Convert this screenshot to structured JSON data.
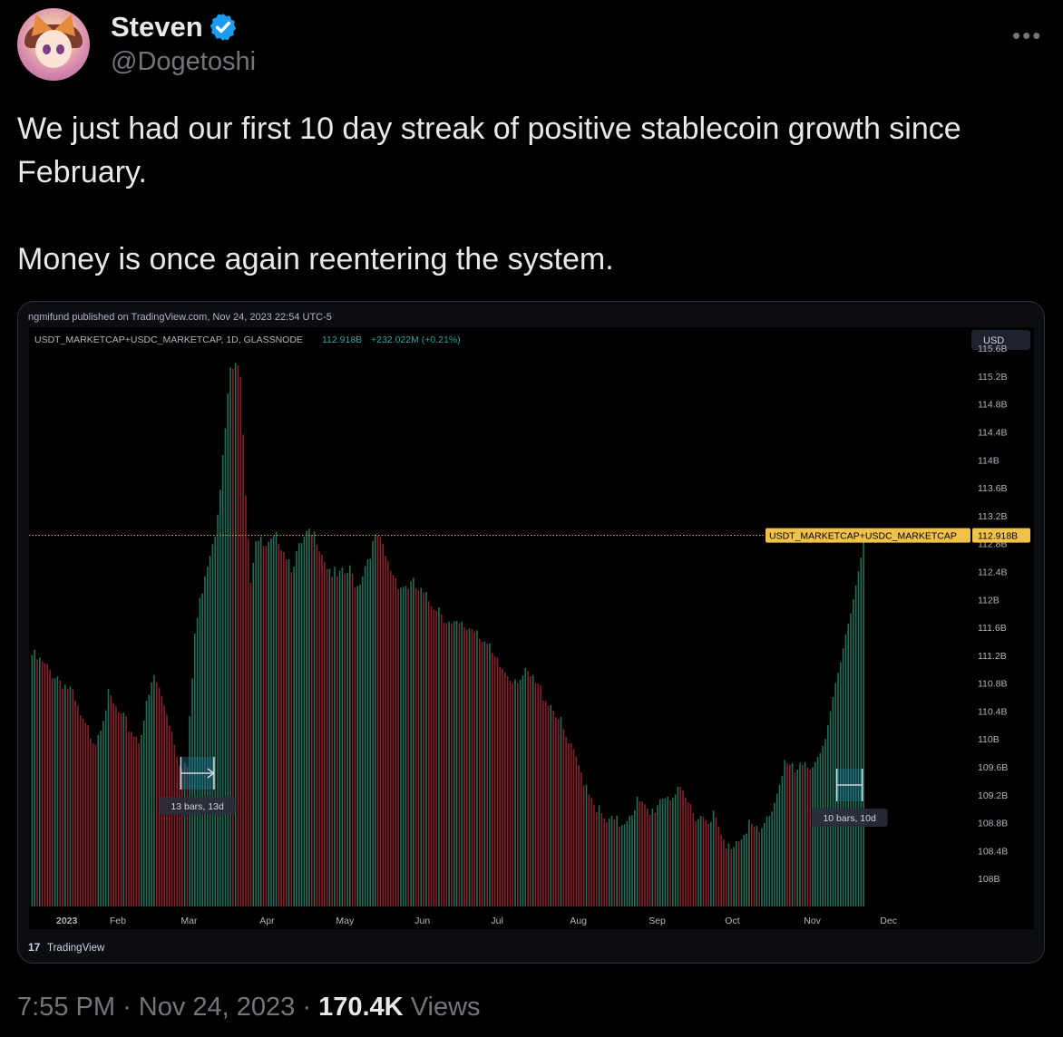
{
  "author": {
    "name": "Steven",
    "handle": "@Dogetoshi"
  },
  "tweet": {
    "line1": "We just had our first 10 day streak of positive stablecoin growth since February.",
    "line2": "Money is once again reentering the system."
  },
  "footer": {
    "time": "7:55 PM",
    "sep1": "·",
    "date": "Nov 24, 2023",
    "sep2": "·",
    "views_count": "170.4K",
    "views_label": "Views"
  },
  "more_icon": "more-horizontal-icon",
  "colors": {
    "up": "#1f6f5a",
    "down": "#8c1f2a",
    "price_label": "#f0c24a",
    "verified": "#1d9bf0"
  },
  "chart_data": {
    "type": "bar",
    "publisher": "ngmifund published on TradingView.com, Nov 24, 2023 22:54 UTC-5",
    "symbol": "USDT_MARKETCAP+USDC_MARKETCAP, 1D, GLASSNODE",
    "last_value": "112.918B",
    "change": "+232.022M (+0.21%)",
    "currency": "USD",
    "price_label_symbol": "USDT_MARKETCAP+USDC_MARKETCAP",
    "price_label_value": "112.918B",
    "last_value_num": 112.918,
    "y_ticks": [
      "115.6B",
      "115.2B",
      "114.8B",
      "114.4B",
      "114B",
      "113.6B",
      "113.2B",
      "112.8B",
      "112.4B",
      "112B",
      "111.6B",
      "111.2B",
      "110.8B",
      "110.4B",
      "110B",
      "109.6B",
      "109.2B",
      "108.8B",
      "108.4B",
      "108B"
    ],
    "y_tick_values": [
      115.6,
      115.2,
      114.8,
      114.4,
      114.0,
      113.6,
      113.2,
      112.8,
      112.4,
      112.0,
      111.6,
      111.2,
      110.8,
      110.4,
      110.0,
      109.6,
      109.2,
      108.8,
      108.4,
      108.0
    ],
    "x_ticks": [
      "2023",
      "Feb",
      "Mar",
      "Apr",
      "May",
      "Jun",
      "Jul",
      "Aug",
      "Sep",
      "Oct",
      "Nov",
      "Dec"
    ],
    "x_tick_day": [
      0,
      31,
      59,
      90,
      120,
      151,
      181,
      212,
      243,
      273,
      304,
      334
    ],
    "ylim": [
      107.6,
      115.9
    ],
    "xlim": [
      0,
      366
    ],
    "last_bar_day": 327,
    "series_anchors": [
      [
        0,
        111.2
      ],
      [
        6,
        111.0
      ],
      [
        10,
        110.9
      ],
      [
        15,
        110.7
      ],
      [
        20,
        110.2
      ],
      [
        25,
        110.0
      ],
      [
        30,
        110.6
      ],
      [
        35,
        110.3
      ],
      [
        42,
        110.0
      ],
      [
        48,
        110.9
      ],
      [
        53,
        110.4
      ],
      [
        58,
        109.7
      ],
      [
        61,
        109.6
      ],
      [
        64,
        111.5
      ],
      [
        68,
        112.4
      ],
      [
        72,
        113.0
      ],
      [
        75,
        114.0
      ],
      [
        78,
        115.3
      ],
      [
        80,
        115.3
      ],
      [
        82,
        115.3
      ],
      [
        84,
        113.6
      ],
      [
        86,
        112.3
      ],
      [
        88,
        112.9
      ],
      [
        92,
        112.7
      ],
      [
        97,
        112.9
      ],
      [
        102,
        112.5
      ],
      [
        108,
        112.9
      ],
      [
        112,
        112.9
      ],
      [
        116,
        112.5
      ],
      [
        120,
        112.3
      ],
      [
        125,
        112.4
      ],
      [
        128,
        112.2
      ],
      [
        133,
        112.7
      ],
      [
        136,
        112.9
      ],
      [
        140,
        112.5
      ],
      [
        145,
        112.2
      ],
      [
        150,
        112.2
      ],
      [
        155,
        112.0
      ],
      [
        160,
        111.9
      ],
      [
        165,
        111.6
      ],
      [
        170,
        111.6
      ],
      [
        175,
        111.6
      ],
      [
        178,
        111.4
      ],
      [
        182,
        111.1
      ],
      [
        188,
        110.9
      ],
      [
        195,
        110.9
      ],
      [
        200,
        110.7
      ],
      [
        206,
        110.4
      ],
      [
        210,
        110.0
      ],
      [
        215,
        109.6
      ],
      [
        220,
        109.2
      ],
      [
        225,
        108.8
      ],
      [
        232,
        108.8
      ],
      [
        238,
        109.1
      ],
      [
        243,
        108.9
      ],
      [
        248,
        109.2
      ],
      [
        255,
        109.2
      ],
      [
        262,
        108.9
      ],
      [
        268,
        108.9
      ],
      [
        273,
        108.4
      ],
      [
        278,
        108.6
      ],
      [
        282,
        108.8
      ],
      [
        286,
        108.6
      ],
      [
        292,
        109.1
      ],
      [
        296,
        109.7
      ],
      [
        300,
        109.5
      ],
      [
        304,
        109.6
      ],
      [
        308,
        109.7
      ],
      [
        310,
        109.8
      ],
      [
        312,
        110.0
      ],
      [
        314,
        110.4
      ],
      [
        316,
        110.8
      ],
      [
        318,
        111.1
      ],
      [
        320,
        111.5
      ],
      [
        322,
        111.8
      ],
      [
        324,
        112.2
      ],
      [
        326,
        112.6
      ],
      [
        327,
        112.918
      ]
    ],
    "annotations": [
      {
        "label": "13 bars, 13d",
        "start_day": 59,
        "end_day": 72
      },
      {
        "label": "10 bars, 10d",
        "start_day": 317,
        "end_day": 327
      }
    ],
    "watermark": "TradingView"
  }
}
